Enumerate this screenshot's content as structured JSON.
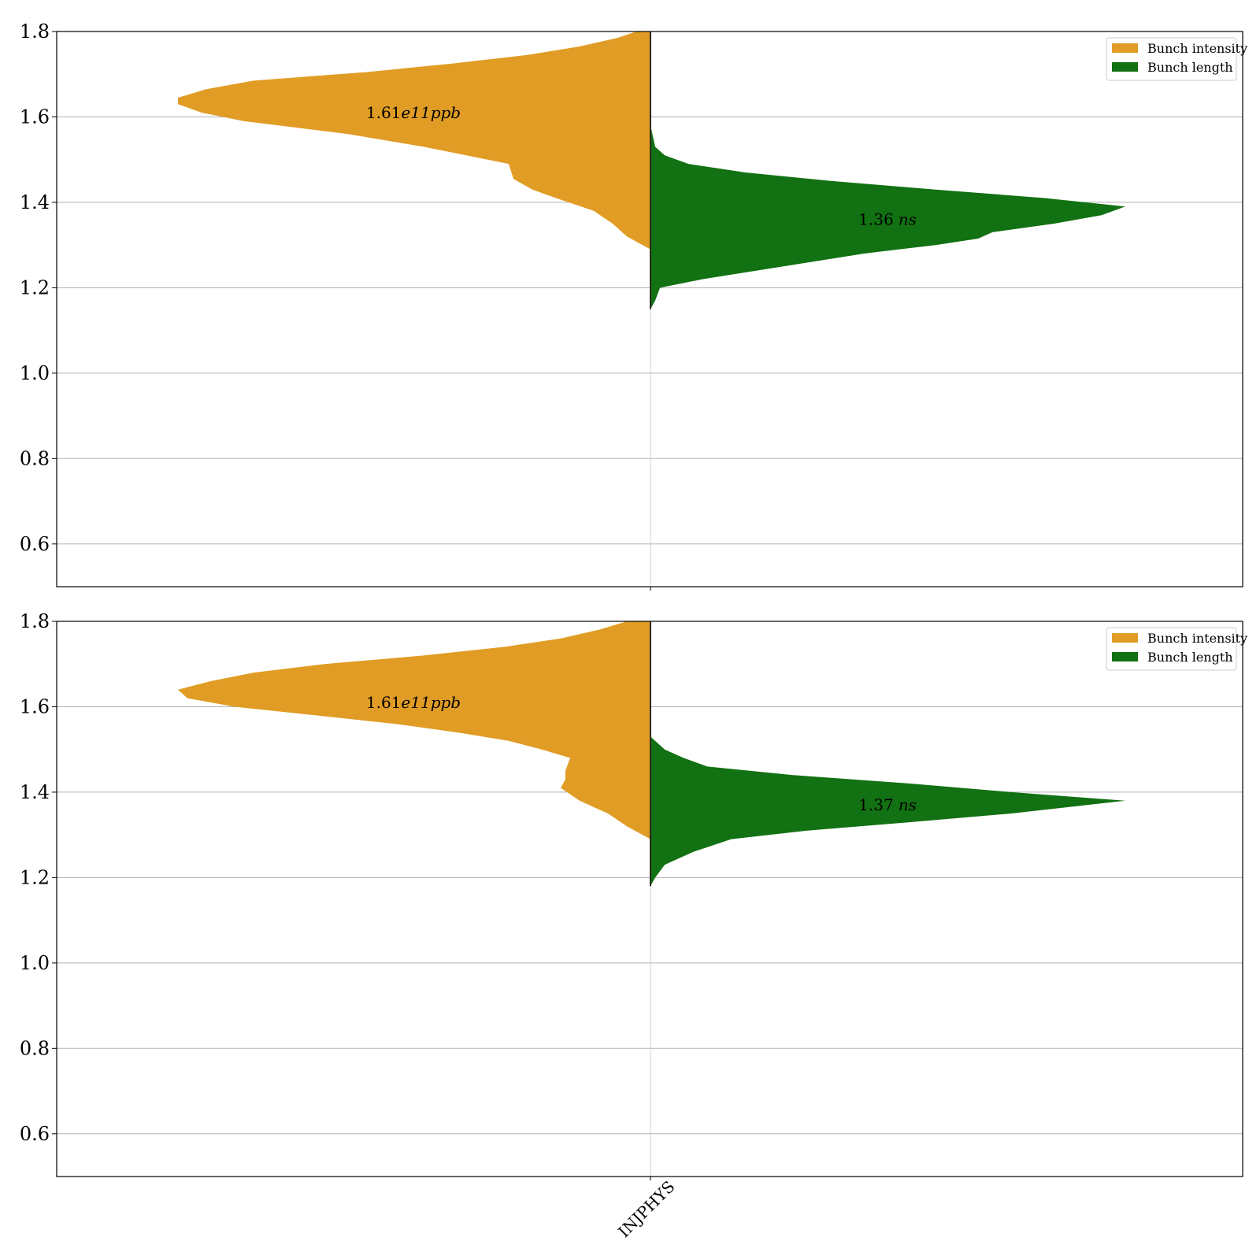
{
  "chart_data": [
    {
      "type": "violin",
      "panel": "top",
      "ylim": [
        0.5,
        1.8
      ],
      "yticks": [
        "0.6",
        "0.8",
        "1.0",
        "1.2",
        "1.4",
        "1.6",
        "1.8"
      ],
      "xticks": [],
      "grid": true,
      "legend": {
        "placement": "top-right",
        "entries": [
          "Bunch intensity",
          "Bunch length"
        ]
      },
      "series": [
        {
          "name": "Bunch intensity",
          "color": "#e09c24",
          "side": "left",
          "annotation": {
            "value": "1.61",
            "unit": "e11ppb",
            "y": 1.61
          },
          "density": [
            [
              1.29,
              0.0
            ],
            [
              1.32,
              0.05
            ],
            [
              1.35,
              0.08
            ],
            [
              1.38,
              0.12
            ],
            [
              1.41,
              0.2
            ],
            [
              1.43,
              0.25
            ],
            [
              1.455,
              0.29
            ],
            [
              1.49,
              0.3
            ],
            [
              1.51,
              0.39
            ],
            [
              1.53,
              0.48
            ],
            [
              1.56,
              0.64
            ],
            [
              1.59,
              0.86
            ],
            [
              1.61,
              0.95
            ],
            [
              1.63,
              1.0
            ],
            [
              1.645,
              1.0
            ],
            [
              1.665,
              0.94
            ],
            [
              1.685,
              0.84
            ],
            [
              1.705,
              0.6
            ],
            [
              1.725,
              0.42
            ],
            [
              1.745,
              0.26
            ],
            [
              1.765,
              0.15
            ],
            [
              1.785,
              0.07
            ],
            [
              1.8,
              0.03
            ]
          ]
        },
        {
          "name": "Bunch length",
          "color": "#127112",
          "side": "right",
          "annotation": {
            "value": "1.36",
            "unit": "ns",
            "y": 1.36
          },
          "density": [
            [
              1.15,
              0.0
            ],
            [
              1.17,
              0.01
            ],
            [
              1.2,
              0.02
            ],
            [
              1.22,
              0.11
            ],
            [
              1.25,
              0.28
            ],
            [
              1.28,
              0.45
            ],
            [
              1.3,
              0.6
            ],
            [
              1.315,
              0.69
            ],
            [
              1.33,
              0.72
            ],
            [
              1.35,
              0.85
            ],
            [
              1.37,
              0.95
            ],
            [
              1.39,
              1.0
            ],
            [
              1.41,
              0.83
            ],
            [
              1.43,
              0.6
            ],
            [
              1.45,
              0.38
            ],
            [
              1.47,
              0.2
            ],
            [
              1.49,
              0.08
            ],
            [
              1.51,
              0.03
            ],
            [
              1.53,
              0.01
            ],
            [
              1.58,
              0.0
            ]
          ]
        }
      ]
    },
    {
      "type": "violin",
      "panel": "bottom",
      "ylim": [
        0.5,
        1.8
      ],
      "yticks": [
        "0.6",
        "0.8",
        "1.0",
        "1.2",
        "1.4",
        "1.6",
        "1.8"
      ],
      "xticks": [
        "INJPHYS"
      ],
      "grid": true,
      "legend": {
        "placement": "top-right",
        "entries": [
          "Bunch intensity",
          "Bunch length"
        ]
      },
      "series": [
        {
          "name": "Bunch intensity",
          "color": "#e09c24",
          "side": "left",
          "annotation": {
            "value": "1.61",
            "unit": "e11ppb",
            "y": 1.61
          },
          "density": [
            [
              1.29,
              0.0
            ],
            [
              1.32,
              0.05
            ],
            [
              1.35,
              0.09
            ],
            [
              1.38,
              0.15
            ],
            [
              1.41,
              0.19
            ],
            [
              1.43,
              0.18
            ],
            [
              1.45,
              0.18
            ],
            [
              1.48,
              0.17
            ],
            [
              1.5,
              0.23
            ],
            [
              1.52,
              0.3
            ],
            [
              1.54,
              0.41
            ],
            [
              1.56,
              0.54
            ],
            [
              1.58,
              0.71
            ],
            [
              1.6,
              0.88
            ],
            [
              1.62,
              0.98
            ],
            [
              1.64,
              1.0
            ],
            [
              1.66,
              0.93
            ],
            [
              1.68,
              0.84
            ],
            [
              1.7,
              0.69
            ],
            [
              1.72,
              0.48
            ],
            [
              1.74,
              0.31
            ],
            [
              1.76,
              0.19
            ],
            [
              1.78,
              0.11
            ],
            [
              1.8,
              0.05
            ]
          ]
        },
        {
          "name": "Bunch length",
          "color": "#127112",
          "side": "right",
          "annotation": {
            "value": "1.37",
            "unit": "ns",
            "y": 1.37
          },
          "density": [
            [
              1.18,
              0.0
            ],
            [
              1.2,
              0.01
            ],
            [
              1.23,
              0.03
            ],
            [
              1.26,
              0.09
            ],
            [
              1.29,
              0.17
            ],
            [
              1.31,
              0.33
            ],
            [
              1.33,
              0.55
            ],
            [
              1.35,
              0.76
            ],
            [
              1.38,
              1.0
            ],
            [
              1.4,
              0.76
            ],
            [
              1.42,
              0.55
            ],
            [
              1.44,
              0.3
            ],
            [
              1.46,
              0.12
            ],
            [
              1.48,
              0.07
            ],
            [
              1.5,
              0.03
            ],
            [
              1.53,
              0.0
            ]
          ]
        }
      ]
    }
  ]
}
